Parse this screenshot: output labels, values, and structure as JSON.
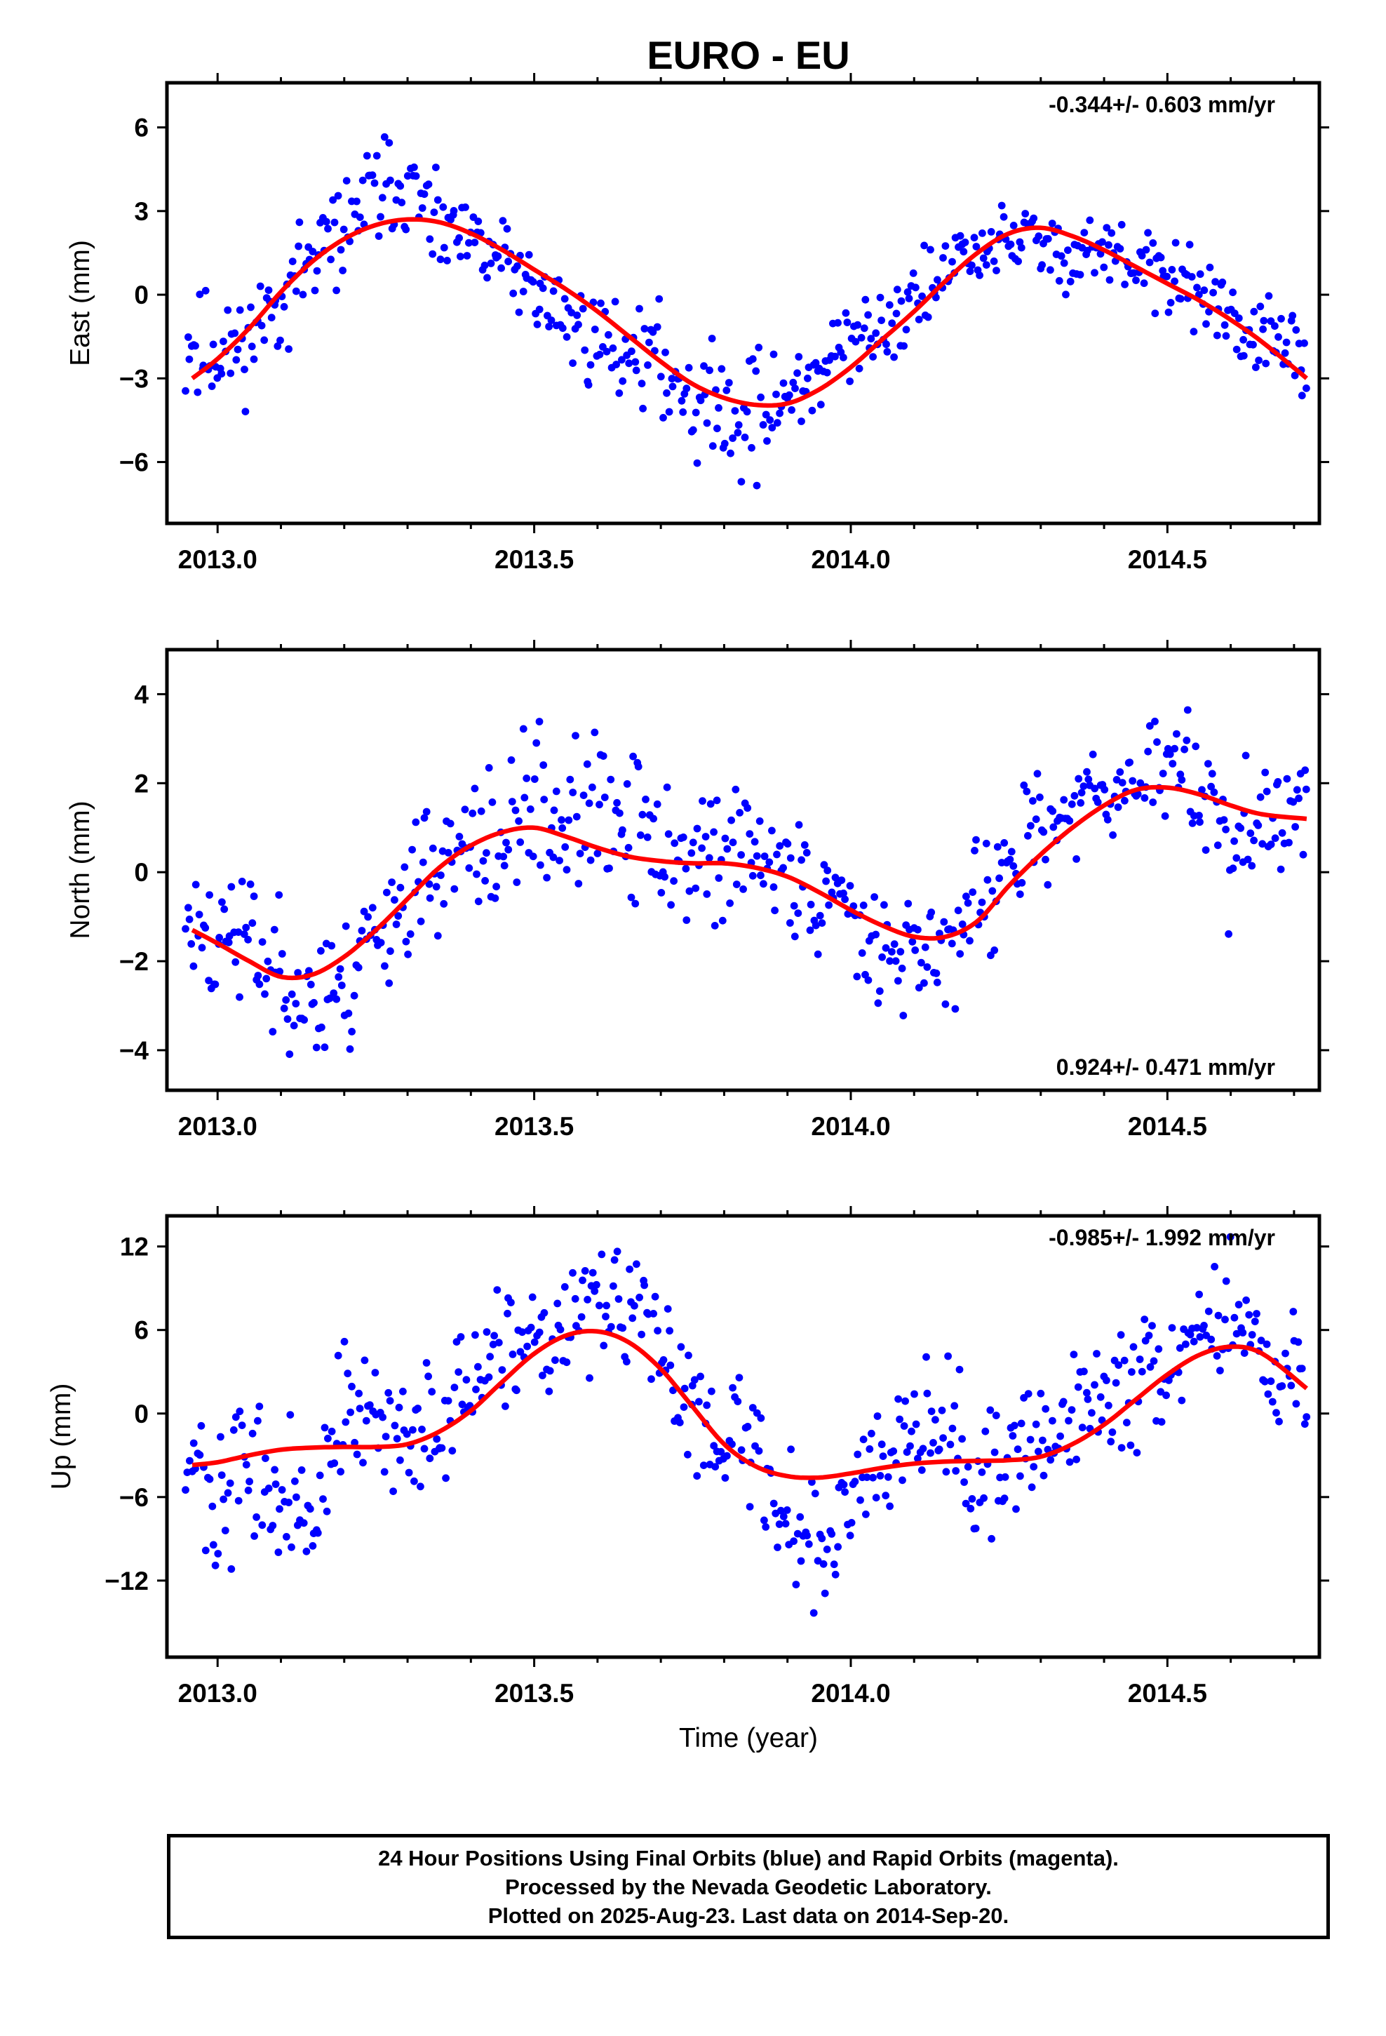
{
  "title": "EURO - EU",
  "xlabel": "Time (year)",
  "footer_lines": [
    "24 Hour Positions Using Final Orbits (blue) and Rapid Orbits (magenta).",
    "Processed by the Nevada Geodetic Laboratory.",
    "Plotted on 2025-Aug-23. Last data on 2014-Sep-20."
  ],
  "colors": {
    "points": "#0000ff",
    "fit": "#ff0000",
    "axis": "#000000"
  },
  "chart_data": [
    {
      "type": "scatter",
      "ylabel": "East (mm)",
      "rate": "-0.344+/- 0.603 mm/yr",
      "rate_position": "top-right",
      "xlim": [
        2012.92,
        2014.74
      ],
      "ylim": [
        -8.2,
        7.6
      ],
      "xticks": [
        "2013.0",
        "2013.5",
        "2014.0",
        "2014.5"
      ],
      "xtick_values": [
        2013.0,
        2013.5,
        2014.0,
        2014.5
      ],
      "yticks": [
        "6",
        "3",
        "0",
        "−3",
        "−6"
      ],
      "ytick_values": [
        6,
        3,
        0,
        -3,
        -6
      ],
      "fit": {
        "x": [
          2012.96,
          2013.0,
          2013.05,
          2013.1,
          2013.15,
          2013.2,
          2013.25,
          2013.3,
          2013.35,
          2013.4,
          2013.45,
          2013.5,
          2013.55,
          2013.6,
          2013.65,
          2013.7,
          2013.75,
          2013.8,
          2013.85,
          2013.9,
          2013.95,
          2014.0,
          2014.05,
          2014.1,
          2014.15,
          2014.2,
          2014.25,
          2014.3,
          2014.35,
          2014.4,
          2014.45,
          2014.5,
          2014.55,
          2014.6,
          2014.65,
          2014.72
        ],
        "y": [
          -3.0,
          -2.3,
          -1.2,
          0.1,
          1.2,
          2.0,
          2.5,
          2.7,
          2.6,
          2.2,
          1.6,
          0.9,
          0.2,
          -0.6,
          -1.5,
          -2.4,
          -3.2,
          -3.7,
          -3.95,
          -3.9,
          -3.4,
          -2.6,
          -1.6,
          -0.6,
          0.5,
          1.5,
          2.2,
          2.4,
          2.1,
          1.6,
          1.0,
          0.4,
          -0.2,
          -0.9,
          -1.7,
          -3.0
        ]
      },
      "points": {
        "anchors_x": [
          2012.95,
          2013.0,
          2013.05,
          2013.1,
          2013.15,
          2013.2,
          2013.25,
          2013.3,
          2013.35,
          2013.4,
          2013.45,
          2013.5,
          2013.55,
          2013.6,
          2013.65,
          2013.7,
          2013.75,
          2013.8,
          2013.85,
          2013.9,
          2013.95,
          2014.0,
          2014.05,
          2014.1,
          2014.15,
          2014.2,
          2014.25,
          2014.3,
          2014.35,
          2014.4,
          2014.45,
          2014.5,
          2014.55,
          2014.6,
          2014.65,
          2014.72
        ],
        "anchors_y": [
          -1.8,
          -2.2,
          -1.6,
          0.0,
          1.2,
          2.4,
          3.8,
          3.9,
          2.2,
          1.8,
          1.3,
          0.2,
          -0.9,
          -1.7,
          -1.8,
          -2.5,
          -3.5,
          -4.2,
          -4.3,
          -3.7,
          -2.7,
          -1.9,
          -1.1,
          -0.2,
          0.8,
          1.5,
          2.0,
          1.8,
          1.5,
          1.6,
          0.8,
          0.6,
          0.3,
          -0.9,
          -1.7,
          -2.5
        ],
        "spread": [
          1.8,
          1.8,
          1.6,
          1.6,
          1.4,
          1.4,
          1.6,
          1.6,
          1.3,
          1.3,
          1.3,
          1.4,
          1.4,
          1.4,
          1.5,
          1.6,
          1.9,
          2.0,
          2.0,
          1.6,
          1.4,
          1.4,
          1.3,
          1.3,
          1.3,
          1.4,
          1.3,
          1.2,
          1.2,
          1.2,
          1.3,
          1.3,
          1.2,
          1.2,
          1.2,
          1.2
        ],
        "count": 560,
        "seed": 11
      }
    },
    {
      "type": "scatter",
      "ylabel": "North (mm)",
      "rate": "0.924+/- 0.471 mm/yr",
      "rate_position": "bottom-right",
      "xlim": [
        2012.92,
        2014.74
      ],
      "ylim": [
        -4.9,
        5.0
      ],
      "xticks": [
        "2013.0",
        "2013.5",
        "2014.0",
        "2014.5"
      ],
      "xtick_values": [
        2013.0,
        2013.5,
        2014.0,
        2014.5
      ],
      "yticks": [
        "4",
        "2",
        "0",
        "−2",
        "−4"
      ],
      "ytick_values": [
        4,
        2,
        0,
        -2,
        -4
      ],
      "fit": {
        "x": [
          2012.96,
          2013.0,
          2013.05,
          2013.1,
          2013.15,
          2013.2,
          2013.25,
          2013.3,
          2013.35,
          2013.4,
          2013.45,
          2013.5,
          2013.55,
          2013.6,
          2013.65,
          2013.7,
          2013.75,
          2013.8,
          2013.85,
          2013.9,
          2013.95,
          2014.0,
          2014.05,
          2014.1,
          2014.15,
          2014.2,
          2014.25,
          2014.3,
          2014.35,
          2014.4,
          2014.45,
          2014.5,
          2014.55,
          2014.6,
          2014.65,
          2014.72
        ],
        "y": [
          -1.3,
          -1.6,
          -2.0,
          -2.35,
          -2.3,
          -1.9,
          -1.3,
          -0.6,
          0.1,
          0.6,
          0.9,
          1.0,
          0.8,
          0.55,
          0.35,
          0.25,
          0.2,
          0.2,
          0.1,
          -0.1,
          -0.45,
          -0.85,
          -1.2,
          -1.45,
          -1.45,
          -1.1,
          -0.3,
          0.4,
          1.0,
          1.5,
          1.85,
          1.9,
          1.75,
          1.5,
          1.3,
          1.2
        ]
      },
      "points": {
        "anchors_x": [
          2012.95,
          2013.0,
          2013.05,
          2013.1,
          2013.15,
          2013.2,
          2013.25,
          2013.3,
          2013.35,
          2013.4,
          2013.45,
          2013.5,
          2013.55,
          2013.6,
          2013.65,
          2013.7,
          2013.75,
          2013.8,
          2013.85,
          2013.9,
          2013.95,
          2014.0,
          2014.05,
          2014.1,
          2014.15,
          2014.2,
          2014.25,
          2014.3,
          2014.35,
          2014.4,
          2014.45,
          2014.5,
          2014.55,
          2014.6,
          2014.65,
          2014.72
        ],
        "anchors_y": [
          -1.2,
          -1.6,
          -1.5,
          -2.3,
          -2.8,
          -2.9,
          -1.0,
          -0.6,
          0.3,
          0.3,
          0.6,
          1.7,
          1.2,
          1.3,
          0.9,
          0.7,
          0.2,
          0.4,
          0.4,
          -0.1,
          -0.5,
          -0.8,
          -1.3,
          -1.8,
          -1.9,
          -0.6,
          0.0,
          1.0,
          1.3,
          1.9,
          2.3,
          2.4,
          2.0,
          0.5,
          0.9,
          1.6
        ],
        "spread": [
          1.3,
          1.3,
          1.3,
          1.4,
          1.4,
          1.4,
          1.3,
          1.3,
          1.3,
          1.4,
          1.5,
          1.6,
          1.6,
          1.5,
          1.4,
          1.3,
          1.3,
          1.3,
          1.3,
          1.2,
          1.2,
          1.2,
          1.2,
          1.3,
          1.3,
          1.2,
          1.1,
          1.1,
          1.1,
          1.1,
          1.1,
          1.1,
          1.2,
          1.3,
          1.3,
          1.2
        ],
        "count": 560,
        "seed": 23
      }
    },
    {
      "type": "scatter",
      "ylabel": "Up (mm)",
      "rate": "-0.985+/- 1.992 mm/yr",
      "rate_position": "top-right",
      "xlim": [
        2012.92,
        2014.74
      ],
      "ylim": [
        -17.5,
        14.2
      ],
      "xticks": [
        "2013.0",
        "2013.5",
        "2014.0",
        "2014.5"
      ],
      "xtick_values": [
        2013.0,
        2013.5,
        2014.0,
        2014.5
      ],
      "yticks": [
        "12",
        "6",
        "0",
        "−6",
        "−12"
      ],
      "ytick_values": [
        12,
        6,
        0,
        -6,
        -12
      ],
      "fit": {
        "x": [
          2012.96,
          2013.0,
          2013.05,
          2013.1,
          2013.15,
          2013.2,
          2013.25,
          2013.3,
          2013.35,
          2013.4,
          2013.45,
          2013.5,
          2013.55,
          2013.6,
          2013.65,
          2013.7,
          2013.75,
          2013.8,
          2013.85,
          2013.9,
          2013.95,
          2014.0,
          2014.05,
          2014.1,
          2014.15,
          2014.2,
          2014.25,
          2014.3,
          2014.35,
          2014.4,
          2014.45,
          2014.5,
          2014.55,
          2014.6,
          2014.65,
          2014.72
        ],
        "y": [
          -3.7,
          -3.5,
          -3.0,
          -2.6,
          -2.45,
          -2.4,
          -2.4,
          -2.2,
          -1.3,
          0.2,
          2.3,
          4.3,
          5.6,
          5.9,
          5.1,
          3.2,
          0.5,
          -2.2,
          -3.8,
          -4.5,
          -4.6,
          -4.3,
          -3.9,
          -3.6,
          -3.45,
          -3.4,
          -3.35,
          -3.1,
          -2.2,
          -0.8,
          1.0,
          2.8,
          4.2,
          4.8,
          4.3,
          1.8
        ]
      },
      "points": {
        "anchors_x": [
          2012.95,
          2013.0,
          2013.05,
          2013.1,
          2013.15,
          2013.2,
          2013.25,
          2013.3,
          2013.35,
          2013.4,
          2013.45,
          2013.5,
          2013.55,
          2013.6,
          2013.65,
          2013.7,
          2013.75,
          2013.8,
          2013.85,
          2013.9,
          2013.95,
          2014.0,
          2014.05,
          2014.1,
          2014.15,
          2014.2,
          2014.25,
          2014.3,
          2014.35,
          2014.4,
          2014.45,
          2014.5,
          2014.55,
          2014.6,
          2014.65,
          2014.72
        ],
        "anchors_y": [
          -2.0,
          -8.0,
          -3.0,
          -6.5,
          -8.0,
          1.0,
          -1.5,
          -2.0,
          -0.5,
          2.0,
          3.5,
          4.0,
          6.5,
          8.0,
          7.5,
          4.0,
          1.0,
          -1.0,
          -3.0,
          -7.0,
          -10.0,
          -6.0,
          -1.5,
          0.5,
          0.0,
          -6.0,
          -3.0,
          -2.0,
          -0.5,
          1.5,
          2.0,
          4.0,
          6.5,
          7.5,
          4.5,
          2.0
        ],
        "spread": [
          4.5,
          4.5,
          4.5,
          4.3,
          4.3,
          4.0,
          3.8,
          3.6,
          3.6,
          3.8,
          3.8,
          4.0,
          4.2,
          4.2,
          4.0,
          4.0,
          4.0,
          4.2,
          4.5,
          4.5,
          4.5,
          4.3,
          4.3,
          4.3,
          4.5,
          4.3,
          4.0,
          3.8,
          3.8,
          3.8,
          3.8,
          3.8,
          4.0,
          4.0,
          4.0,
          3.8
        ],
        "count": 560,
        "seed": 37
      }
    }
  ]
}
